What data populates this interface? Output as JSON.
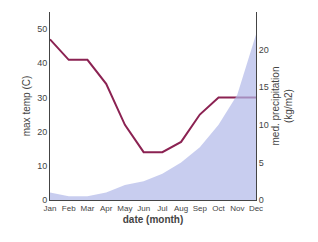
{
  "chart_data": {
    "type": "line",
    "categories": [
      "Jan",
      "Feb",
      "Mar",
      "Apr",
      "May",
      "Jun",
      "Jul",
      "Aug",
      "Sep",
      "Oct",
      "Nov",
      "Dec"
    ],
    "xlabel": "date (month)",
    "ylabel": "max temp (C)",
    "y2label": "med. precipitation\n(kg/m2)",
    "series": [
      {
        "type": "area",
        "axis": "y2",
        "color": "#b0b8e8",
        "values": [
          1,
          0.5,
          0.5,
          1,
          2,
          2.5,
          3.5,
          5,
          7,
          10,
          14,
          22
        ]
      },
      {
        "type": "line",
        "color": "#8b2252",
        "values": [
          47,
          41,
          41,
          34,
          22,
          14,
          14,
          17,
          25,
          30,
          30,
          30
        ]
      }
    ],
    "ylim": [
      0,
      55
    ],
    "yticks": [
      0,
      10,
      20,
      30,
      40,
      50
    ],
    "y2lim": [
      0,
      25
    ],
    "y2ticks": [
      0,
      5,
      10,
      15,
      20
    ],
    "grid": false
  }
}
